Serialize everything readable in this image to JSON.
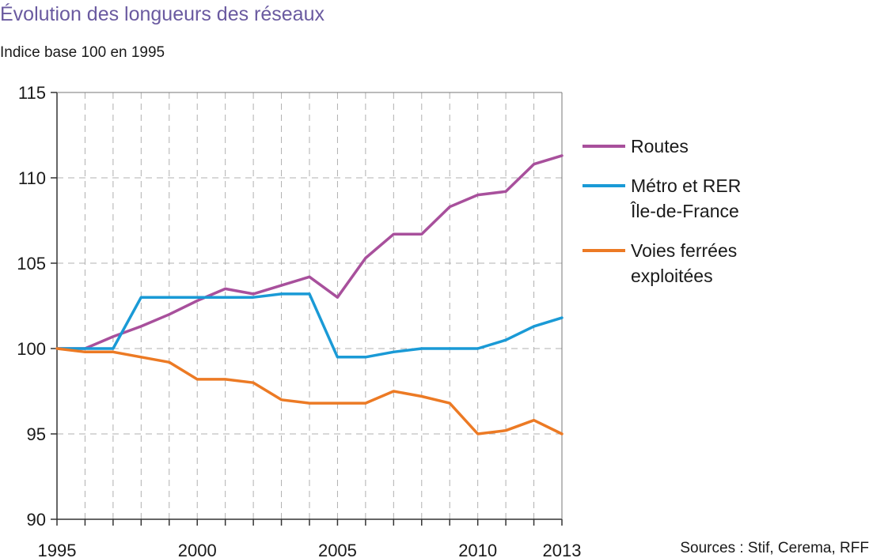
{
  "chart_data": {
    "type": "line",
    "title": "Évolution des longueurs des réseaux",
    "subtitle": "Indice base 100 en 1995",
    "source": "Sources : Stif, Cerema, RFF",
    "x": [
      1995,
      1996,
      1997,
      1998,
      1999,
      2000,
      2001,
      2002,
      2003,
      2004,
      2005,
      2006,
      2007,
      2008,
      2009,
      2010,
      2011,
      2012,
      2013
    ],
    "x_tick_labels": [
      "1995",
      "2000",
      "2005",
      "2010",
      "2013"
    ],
    "y_tick_labels": [
      "90",
      "95",
      "100",
      "105",
      "110",
      "115"
    ],
    "ylim": [
      90,
      115
    ],
    "xlim": [
      1995,
      2013
    ],
    "grid": true,
    "legend_position": "right",
    "series": [
      {
        "name": "Routes",
        "color": "#a8509c",
        "values": [
          100,
          100,
          100.7,
          101.3,
          102,
          102.8,
          103.5,
          103.2,
          103.7,
          104.2,
          103,
          105.3,
          106.7,
          106.7,
          108.3,
          109,
          109.2,
          110.8,
          111.3
        ]
      },
      {
        "name": "Métro et RER Île-de-France",
        "legend_lines": [
          "Métro et RER",
          "Île-de-France"
        ],
        "color": "#1a9ad6",
        "values": [
          100,
          100,
          100,
          103,
          103,
          103,
          103,
          103,
          103.2,
          103.2,
          99.5,
          99.5,
          99.8,
          100,
          100,
          100,
          100.5,
          101.3,
          101.8
        ]
      },
      {
        "name": "Voies ferrées exploitées",
        "legend_lines": [
          "Voies ferrées",
          "exploitées"
        ],
        "color": "#ec7a24",
        "values": [
          100,
          99.8,
          99.8,
          99.5,
          99.2,
          98.2,
          98.2,
          98,
          97,
          96.8,
          96.8,
          96.8,
          97.5,
          97.2,
          96.8,
          95,
          95.2,
          95.8,
          95
        ]
      }
    ]
  }
}
